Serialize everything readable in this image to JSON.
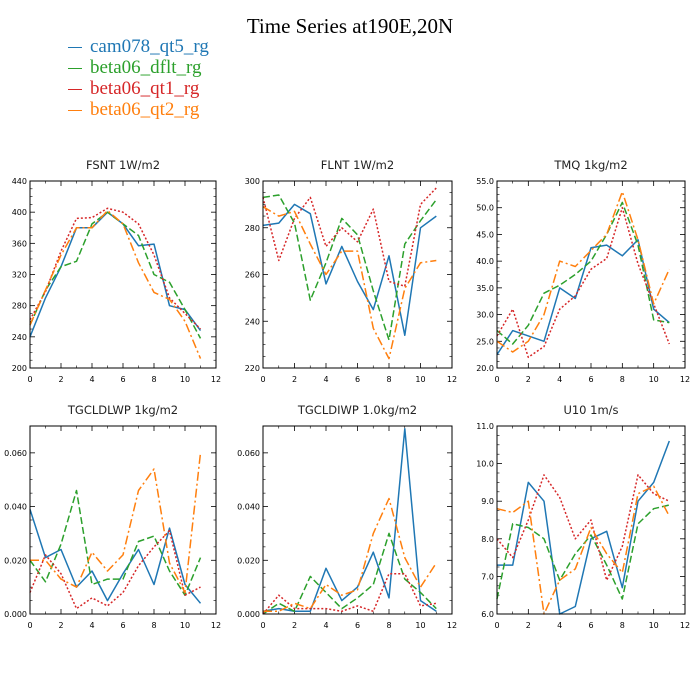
{
  "title": "Time Series at190E,20N",
  "legend": [
    {
      "label": "cam078_qt5_rg",
      "color": "#1f77b4"
    },
    {
      "label": "beta06_dflt_rg",
      "color": "#2ca02c"
    },
    {
      "label": "beta06_qt1_rg",
      "color": "#d62728"
    },
    {
      "label": "beta06_qt2_rg",
      "color": "#ff7f0e"
    }
  ],
  "chart_data": [
    {
      "type": "line",
      "title": "FSNT   1W/m2",
      "xlim": [
        0,
        12
      ],
      "ylim": [
        200,
        440
      ],
      "xticks": [
        0,
        2,
        4,
        6,
        8,
        10,
        12
      ],
      "xtick_labels": [
        "0",
        "2",
        "4",
        "6",
        "8",
        "10",
        "12"
      ],
      "yticks": [
        200,
        240,
        280,
        320,
        360,
        400,
        440
      ],
      "ytick_labels": [
        "200",
        "240",
        "280",
        "320",
        "360",
        "400",
        "440"
      ],
      "x": [
        0,
        1,
        2,
        3,
        4,
        5,
        6,
        7,
        8,
        9,
        10,
        11
      ],
      "series": [
        {
          "name": "cam078_qt5_rg",
          "values": [
            240,
            290,
            330,
            380,
            380,
            400,
            385,
            357,
            359,
            280,
            275,
            248
          ]
        },
        {
          "name": "beta06_dflt_rg",
          "values": [
            255,
            300,
            330,
            337,
            385,
            400,
            385,
            370,
            320,
            310,
            275,
            238
          ]
        },
        {
          "name": "beta06_qt1_rg",
          "values": [
            262,
            298,
            350,
            392,
            393,
            405,
            400,
            385,
            345,
            290,
            270,
            250
          ]
        },
        {
          "name": "beta06_qt2_rg",
          "values": [
            255,
            300,
            345,
            380,
            380,
            402,
            385,
            335,
            297,
            288,
            260,
            212
          ]
        }
      ]
    },
    {
      "type": "line",
      "title": "FLNT   1W/m2",
      "xlim": [
        0,
        12
      ],
      "ylim": [
        220,
        300
      ],
      "xticks": [
        0,
        2,
        4,
        6,
        8,
        10,
        12
      ],
      "xtick_labels": [
        "0",
        "2",
        "4",
        "6",
        "8",
        "10",
        "12"
      ],
      "yticks": [
        220,
        240,
        260,
        280,
        300
      ],
      "ytick_labels": [
        "220",
        "240",
        "260",
        "280",
        "300"
      ],
      "x": [
        0,
        1,
        2,
        3,
        4,
        5,
        6,
        7,
        8,
        9,
        10,
        11
      ],
      "series": [
        {
          "name": "cam078_qt5_rg",
          "values": [
            281,
            282,
            290,
            286,
            256,
            272,
            257,
            245,
            268,
            234,
            280,
            285
          ]
        },
        {
          "name": "beta06_dflt_rg",
          "values": [
            293,
            294,
            282,
            249,
            265,
            284,
            277,
            253,
            232,
            273,
            283,
            292
          ]
        },
        {
          "name": "beta06_qt1_rg",
          "values": [
            293,
            266,
            284,
            293,
            272,
            280,
            274,
            288,
            257,
            255,
            290,
            297
          ]
        },
        {
          "name": "beta06_qt2_rg",
          "values": [
            289,
            285,
            287,
            273,
            260,
            270,
            270,
            237,
            224,
            254,
            265,
            266
          ]
        }
      ]
    },
    {
      "type": "line",
      "title": "TMQ   1kg/m2",
      "xlim": [
        0,
        12
      ],
      "ylim": [
        20,
        55
      ],
      "xticks": [
        0,
        2,
        4,
        6,
        8,
        10,
        12
      ],
      "xtick_labels": [
        "0",
        "2",
        "4",
        "6",
        "8",
        "10",
        "12"
      ],
      "yticks": [
        20,
        25,
        30,
        35,
        40,
        45,
        50,
        55
      ],
      "ytick_labels": [
        "20.0",
        "25.0",
        "30.0",
        "35.0",
        "40.0",
        "45.0",
        "50.0",
        "55.0"
      ],
      "x": [
        0,
        1,
        2,
        3,
        4,
        5,
        6,
        7,
        8,
        9,
        10,
        11
      ],
      "series": [
        {
          "name": "cam078_qt5_rg",
          "values": [
            22.5,
            27,
            26,
            25,
            35,
            33,
            42.5,
            43,
            41,
            44,
            31,
            28.5
          ]
        },
        {
          "name": "beta06_dflt_rg",
          "values": [
            27,
            24.5,
            28,
            34,
            35.5,
            37.5,
            40,
            45,
            51,
            43,
            29,
            28.5
          ]
        },
        {
          "name": "beta06_qt1_rg",
          "values": [
            26,
            31,
            22,
            24,
            31,
            33.5,
            38.5,
            40.5,
            50,
            39.5,
            32,
            24.5
          ]
        },
        {
          "name": "beta06_qt2_rg",
          "values": [
            25,
            23,
            25,
            30,
            40,
            39,
            42,
            45,
            53,
            44,
            32,
            38.5
          ]
        }
      ]
    },
    {
      "type": "line",
      "title": "TGCLDLWP   1kg/m2",
      "xlim": [
        0,
        12
      ],
      "ylim": [
        0,
        0.07
      ],
      "xticks": [
        0,
        2,
        4,
        6,
        8,
        10,
        12
      ],
      "xtick_labels": [
        "0",
        "2",
        "4",
        "6",
        "8",
        "10",
        "12"
      ],
      "yticks": [
        0,
        0.02,
        0.04,
        0.06
      ],
      "ytick_labels": [
        "0.000",
        "0.020",
        "0.040",
        "0.060"
      ],
      "x": [
        0,
        1,
        2,
        3,
        4,
        5,
        6,
        7,
        8,
        9,
        10,
        11
      ],
      "series": [
        {
          "name": "cam078_qt5_rg",
          "values": [
            0.039,
            0.021,
            0.024,
            0.01,
            0.016,
            0.005,
            0.015,
            0.024,
            0.011,
            0.032,
            0.011,
            0.004
          ]
        },
        {
          "name": "beta06_dflt_rg",
          "values": [
            0.02,
            0.012,
            0.026,
            0.046,
            0.011,
            0.013,
            0.013,
            0.027,
            0.029,
            0.016,
            0.007,
            0.021
          ]
        },
        {
          "name": "beta06_qt1_rg",
          "values": [
            0.008,
            0.022,
            0.015,
            0.002,
            0.006,
            0.003,
            0.008,
            0.018,
            0.025,
            0.031,
            0.007,
            0.01
          ]
        },
        {
          "name": "beta06_qt2_rg",
          "values": [
            0.02,
            0.02,
            0.013,
            0.01,
            0.023,
            0.016,
            0.022,
            0.046,
            0.054,
            0.019,
            0.008,
            0.06
          ]
        }
      ]
    },
    {
      "type": "line",
      "title": "TGCLDIWP   1.0kg/m2",
      "xlim": [
        0,
        12
      ],
      "ylim": [
        0,
        0.07
      ],
      "xticks": [
        0,
        2,
        4,
        6,
        8,
        10,
        12
      ],
      "xtick_labels": [
        "0",
        "2",
        "4",
        "6",
        "8",
        "10",
        "12"
      ],
      "yticks": [
        0,
        0.02,
        0.04,
        0.06
      ],
      "ytick_labels": [
        "0.000",
        "0.020",
        "0.040",
        "0.060"
      ],
      "x": [
        0,
        1,
        2,
        3,
        4,
        5,
        6,
        7,
        8,
        9,
        10,
        11
      ],
      "series": [
        {
          "name": "cam078_qt5_rg",
          "values": [
            0.001,
            0.002,
            0.001,
            0.001,
            0.017,
            0.005,
            0.01,
            0.023,
            0.006,
            0.069,
            0.005,
            0.001
          ]
        },
        {
          "name": "beta06_dflt_rg",
          "values": [
            0,
            0.004,
            0.001,
            0.014,
            0.008,
            0.002,
            0.006,
            0.011,
            0.03,
            0.013,
            0.008,
            0.002
          ]
        },
        {
          "name": "beta06_qt1_rg",
          "values": [
            0,
            0.007,
            0.002,
            0.002,
            0.002,
            0.001,
            0.003,
            0.001,
            0.015,
            0.015,
            0.003,
            0.004
          ]
        },
        {
          "name": "beta06_qt2_rg",
          "values": [
            0.001,
            0.001,
            0.004,
            0.002,
            0.011,
            0.007,
            0.009,
            0.03,
            0.043,
            0.021,
            0.01,
            0.019
          ]
        }
      ]
    },
    {
      "type": "line",
      "title": "U10   1m/s",
      "xlim": [
        0,
        12
      ],
      "ylim": [
        6,
        11
      ],
      "xticks": [
        0,
        2,
        4,
        6,
        8,
        10,
        12
      ],
      "xtick_labels": [
        "0",
        "2",
        "4",
        "6",
        "8",
        "10",
        "12"
      ],
      "yticks": [
        6,
        7,
        8,
        9,
        10,
        11
      ],
      "ytick_labels": [
        "6.0",
        "7.0",
        "8.0",
        "9.0",
        "10.0",
        "11.0"
      ],
      "x": [
        0,
        1,
        2,
        3,
        4,
        5,
        6,
        7,
        8,
        9,
        10,
        11
      ],
      "series": [
        {
          "name": "cam078_qt5_rg",
          "values": [
            7.3,
            7.3,
            9.5,
            9.0,
            6.0,
            6.2,
            8.0,
            8.2,
            6.7,
            9.0,
            9.5,
            10.6
          ]
        },
        {
          "name": "beta06_dflt_rg",
          "values": [
            6.4,
            8.4,
            8.3,
            8.0,
            6.9,
            7.6,
            8.1,
            7.3,
            6.4,
            8.4,
            8.8,
            8.9
          ]
        },
        {
          "name": "beta06_qt1_rg",
          "values": [
            8.0,
            7.5,
            8.5,
            9.7,
            9.1,
            8.0,
            8.5,
            6.9,
            7.8,
            9.7,
            9.2,
            9.0
          ]
        },
        {
          "name": "beta06_qt2_rg",
          "values": [
            8.8,
            8.7,
            9.0,
            6.0,
            6.9,
            7.2,
            8.3,
            7.6,
            7.1,
            9.2,
            9.4,
            8.6
          ]
        }
      ]
    }
  ]
}
